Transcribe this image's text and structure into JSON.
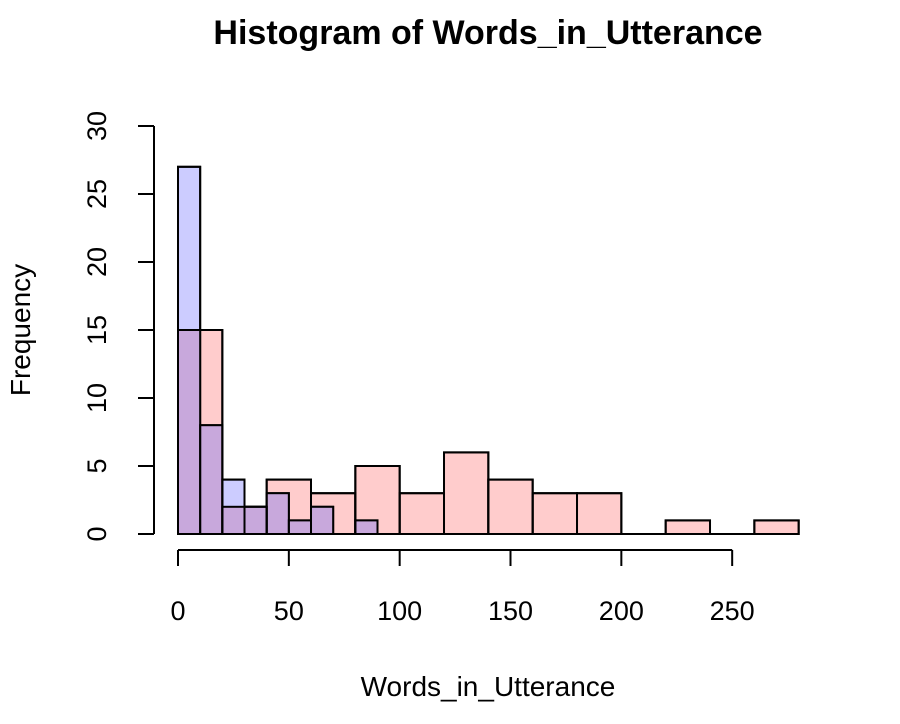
{
  "chart_data": {
    "type": "histogram",
    "title": "Histogram of Words_in_Utterance",
    "xlabel": "Words_in_Utterance",
    "ylabel": "Frequency",
    "xlim": [
      0,
      280
    ],
    "ylim": [
      0,
      30
    ],
    "xticks": [
      0,
      50,
      100,
      150,
      200,
      250
    ],
    "yticks": [
      0,
      5,
      10,
      15,
      20,
      25,
      30
    ],
    "grid": false,
    "legend": "none",
    "overlap_color": "#c8a8dc",
    "series": [
      {
        "color": "#ffcccc",
        "bins": [
          {
            "x0": 0,
            "x1": 20,
            "count": 15
          },
          {
            "x0": 20,
            "x1": 40,
            "count": 2
          },
          {
            "x0": 40,
            "x1": 60,
            "count": 4
          },
          {
            "x0": 60,
            "x1": 80,
            "count": 3
          },
          {
            "x0": 80,
            "x1": 100,
            "count": 5
          },
          {
            "x0": 100,
            "x1": 120,
            "count": 3
          },
          {
            "x0": 120,
            "x1": 140,
            "count": 6
          },
          {
            "x0": 140,
            "x1": 160,
            "count": 4
          },
          {
            "x0": 160,
            "x1": 180,
            "count": 3
          },
          {
            "x0": 180,
            "x1": 200,
            "count": 3
          },
          {
            "x0": 200,
            "x1": 220,
            "count": 0
          },
          {
            "x0": 220,
            "x1": 240,
            "count": 1
          },
          {
            "x0": 240,
            "x1": 260,
            "count": 0
          },
          {
            "x0": 260,
            "x1": 280,
            "count": 1
          }
        ]
      },
      {
        "color": "#ccccff",
        "bins": [
          {
            "x0": 0,
            "x1": 10,
            "count": 27
          },
          {
            "x0": 10,
            "x1": 20,
            "count": 8
          },
          {
            "x0": 20,
            "x1": 30,
            "count": 4
          },
          {
            "x0": 30,
            "x1": 40,
            "count": 2
          },
          {
            "x0": 40,
            "x1": 50,
            "count": 3
          },
          {
            "x0": 50,
            "x1": 60,
            "count": 1
          },
          {
            "x0": 60,
            "x1": 70,
            "count": 2
          },
          {
            "x0": 70,
            "x1": 80,
            "count": 0
          },
          {
            "x0": 80,
            "x1": 90,
            "count": 1
          }
        ]
      }
    ]
  }
}
